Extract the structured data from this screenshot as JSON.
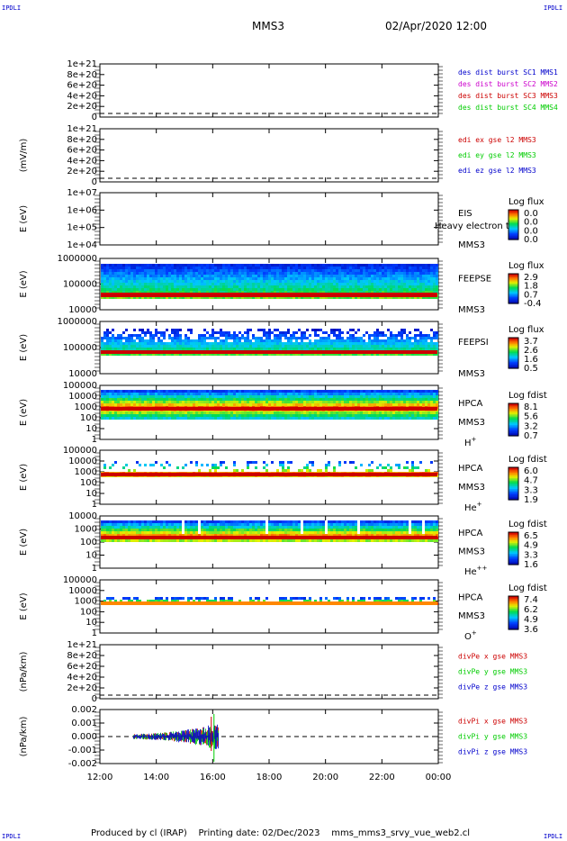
{
  "header": {
    "title": "MMS3",
    "datetime": "02/Apr/2020 12:00"
  },
  "corner_label": "IPDLI",
  "footer": "Produced by cl (IRAP)    Printing date: 02/Dec/2023    mms_mms3_srvy_vue_web2.cl",
  "x_ticks": [
    "12:00",
    "14:00",
    "16:00",
    "18:00",
    "20:00",
    "22:00",
    "00:00"
  ],
  "colors": {
    "blue": "#0000cc",
    "magenta": "#cc00cc",
    "red": "#cc0000",
    "green": "#00cc00"
  },
  "chart_data": [
    {
      "type": "line",
      "ylabel": "",
      "yticks": [
        "1e+21",
        "8e+20",
        "6e+20",
        "4e+20",
        "2e+20",
        "0"
      ],
      "legend": [
        {
          "text": "des dist burst SC1 MMS1",
          "color": "#0000cc"
        },
        {
          "text": "des dist burst SC2 MMS2",
          "color": "#cc00cc"
        },
        {
          "text": "des dist burst SC3 MMS3",
          "color": "#cc0000"
        },
        {
          "text": "des dist burst SC4 MMS4",
          "color": "#00cc00"
        }
      ]
    },
    {
      "type": "line",
      "ylabel": "(mV/m)",
      "yticks": [
        "1e+21",
        "8e+20",
        "6e+20",
        "4e+20",
        "2e+20",
        "0"
      ],
      "legend": [
        {
          "text": "edi ex gse l2 MMS3",
          "color": "#cc0000"
        },
        {
          "text": "edi ey gse l2 MMS3",
          "color": "#00cc00"
        },
        {
          "text": "edi ez gse l2 MMS3",
          "color": "#0000cc"
        }
      ]
    },
    {
      "type": "heatmap",
      "ylabel": "E (eV)",
      "yticks": [
        "1e+07",
        "1e+06",
        "1e+05",
        "1e+04"
      ],
      "instrument": "EIS",
      "spacecraft": "MMS3",
      "overlay": "Heavy electron tof",
      "cbar_title": "Log flux",
      "cbar_ticks": [
        "0.0",
        "0.0",
        "0.0",
        "0.0"
      ]
    },
    {
      "type": "heatmap",
      "ylabel": "E (eV)",
      "yticks": [
        "1000000",
        "100000",
        "10000"
      ],
      "instrument": "FEEPSE",
      "spacecraft": "MMS3",
      "cbar_title": "Log flux",
      "cbar_ticks": [
        "2.9",
        "1.8",
        "0.7",
        "-0.4"
      ]
    },
    {
      "type": "heatmap",
      "ylabel": "E (eV)",
      "yticks": [
        "1000000",
        "100000",
        "10000"
      ],
      "instrument": "FEEPSI",
      "spacecraft": "MMS3",
      "cbar_title": "Log flux",
      "cbar_ticks": [
        "3.7",
        "2.6",
        "1.6",
        "0.5"
      ]
    },
    {
      "type": "heatmap",
      "ylabel": "E (eV)",
      "yticks": [
        "100000",
        "10000",
        "1000",
        "100",
        "10",
        "1"
      ],
      "instrument": "HPCA",
      "spacecraft": "MMS3",
      "species": "H",
      "charge": "+",
      "cbar_title": "Log fdist",
      "cbar_ticks": [
        "8.1",
        "5.6",
        "3.2",
        "0.7"
      ]
    },
    {
      "type": "heatmap",
      "ylabel": "E (eV)",
      "yticks": [
        "100000",
        "10000",
        "1000",
        "100",
        "10",
        "1"
      ],
      "instrument": "HPCA",
      "spacecraft": "MMS3",
      "species": "He",
      "charge": "+",
      "cbar_title": "Log fdist",
      "cbar_ticks": [
        "6.0",
        "4.7",
        "3.3",
        "1.9"
      ]
    },
    {
      "type": "heatmap",
      "ylabel": "E (eV)",
      "yticks": [
        "10000",
        "1000",
        "100",
        "10",
        "1"
      ],
      "instrument": "HPCA",
      "spacecraft": "MMS3",
      "species": "He",
      "charge": "++",
      "cbar_title": "Log fdist",
      "cbar_ticks": [
        "6.5",
        "4.9",
        "3.3",
        "1.6"
      ]
    },
    {
      "type": "heatmap",
      "ylabel": "E (eV)",
      "yticks": [
        "100000",
        "10000",
        "1000",
        "100",
        "10",
        "1"
      ],
      "instrument": "HPCA",
      "spacecraft": "MMS3",
      "species": "O",
      "charge": "+",
      "cbar_title": "Log fdist",
      "cbar_ticks": [
        "7.4",
        "6.2",
        "4.9",
        "3.6"
      ]
    },
    {
      "type": "line",
      "ylabel": "(nPa/km)",
      "yticks": [
        "1e+21",
        "8e+20",
        "6e+20",
        "4e+20",
        "2e+20",
        "0"
      ],
      "legend": [
        {
          "text": "divPe x gse MMS3",
          "color": "#cc0000"
        },
        {
          "text": "divPe y gse MMS3",
          "color": "#00cc00"
        },
        {
          "text": "divPe z gse MMS3",
          "color": "#0000cc"
        }
      ]
    },
    {
      "type": "line",
      "ylabel": "(nPa/km)",
      "yticks": [
        "0.002",
        "0.001",
        "0.000",
        "-0.001",
        "-0.002"
      ],
      "ylim": [
        -0.0027,
        0.0027
      ],
      "legend": [
        {
          "text": "divPi x gse MMS3",
          "color": "#cc0000"
        },
        {
          "text": "divPi y gse MMS3",
          "color": "#00cc00"
        },
        {
          "text": "divPi z gse MMS3",
          "color": "#0000cc"
        }
      ]
    }
  ]
}
